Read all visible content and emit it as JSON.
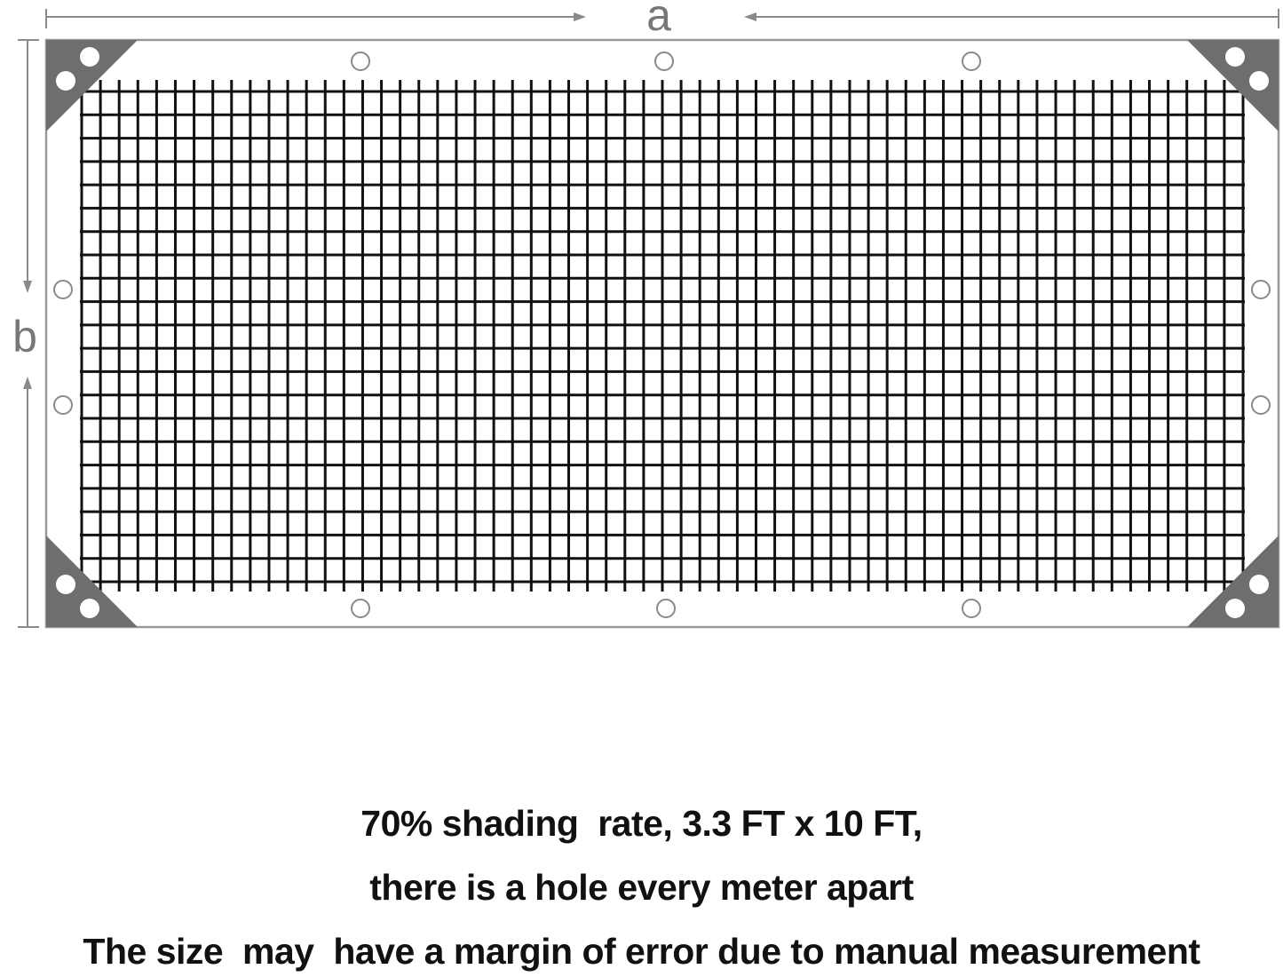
{
  "diagram": {
    "dimension_width_label": "a",
    "dimension_height_label": "b",
    "colors": {
      "frame": "#8a8a8a",
      "corner": "#6e6e6e",
      "mesh": "#111111",
      "grommet": "#8a8a8a"
    }
  },
  "caption": {
    "line1": "70% shading  rate, 3.3 FT x 10 FT,",
    "line2": "there is a hole every meter apart",
    "line3": "The size  may  have a margin of error due to manual measurement"
  }
}
